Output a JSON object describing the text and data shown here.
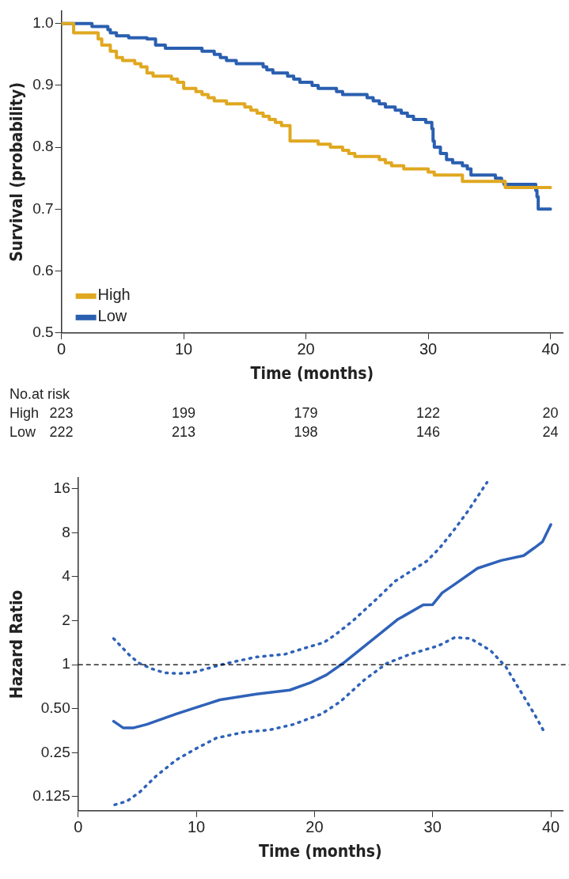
{
  "chart_data": [
    {
      "type": "step",
      "ylabel": "Survival (probability)",
      "xlabel": "Time (months)",
      "xlim": [
        0,
        41
      ],
      "xticks": [
        0,
        10,
        20,
        30,
        40
      ],
      "ylim": [
        0.5,
        1.02
      ],
      "yticks": [
        0.5,
        0.6,
        0.7,
        0.8,
        0.9,
        {
          "value": 1,
          "label": "1.0"
        }
      ],
      "grid": false,
      "legend": "bottom left",
      "series": [
        {
          "name": "High",
          "color": "#e0a820",
          "x": [
            0,
            1,
            3,
            3.3,
            4,
            4.5,
            5,
            6,
            6.5,
            7,
            7.5,
            9,
            9.5,
            10,
            11,
            11.5,
            12,
            12.5,
            13.5,
            15,
            15.5,
            16,
            16.5,
            17,
            17.5,
            18,
            18.7,
            21,
            22,
            23,
            23.5,
            24,
            26,
            26.5,
            27,
            28,
            30,
            30.5,
            32.8,
            36.3,
            40
          ],
          "values": [
            1,
            0.985,
            0.975,
            0.965,
            0.955,
            0.945,
            0.94,
            0.935,
            0.93,
            0.92,
            0.915,
            0.91,
            0.905,
            0.895,
            0.89,
            0.885,
            0.88,
            0.875,
            0.87,
            0.865,
            0.86,
            0.855,
            0.85,
            0.845,
            0.84,
            0.835,
            0.81,
            0.805,
            0.8,
            0.795,
            0.79,
            0.785,
            0.78,
            0.775,
            0.77,
            0.765,
            0.76,
            0.755,
            0.745,
            0.735,
            0.735
          ]
        },
        {
          "name": "Low",
          "color": "#2a5fb0",
          "x": [
            0,
            2.5,
            3.8,
            4,
            4.5,
            5.5,
            7,
            7.7,
            8.5,
            11.5,
            12.5,
            13,
            13.5,
            14.3,
            16.5,
            16.8,
            17.3,
            18.5,
            19,
            19.5,
            20.5,
            21,
            22.5,
            23,
            25,
            25.5,
            26,
            26.5,
            27.3,
            27.8,
            28.3,
            28.8,
            29.8,
            30.3,
            30.4,
            30.5,
            31,
            31.5,
            32,
            32.8,
            33.2,
            33.5,
            35.5,
            36,
            36.2,
            38.8,
            38.9,
            39,
            40
          ],
          "values": [
            1,
            0.995,
            0.99,
            0.985,
            0.98,
            0.977,
            0.975,
            0.965,
            0.96,
            0.955,
            0.95,
            0.945,
            0.94,
            0.935,
            0.93,
            0.925,
            0.92,
            0.915,
            0.91,
            0.905,
            0.9,
            0.895,
            0.89,
            0.885,
            0.88,
            0.875,
            0.87,
            0.865,
            0.86,
            0.855,
            0.85,
            0.845,
            0.84,
            0.83,
            0.81,
            0.8,
            0.79,
            0.78,
            0.775,
            0.77,
            0.765,
            0.755,
            0.75,
            0.745,
            0.74,
            0.73,
            0.72,
            0.7,
            0.7
          ]
        }
      ],
      "annotations": [
        "No.at risk",
        "High",
        "223",
        "199",
        "179",
        "122",
        "20",
        "Low",
        "222",
        "213",
        "198",
        "146",
        "24"
      ]
    },
    {
      "type": "line",
      "ylabel": "Hazard Ratio",
      "xlabel": "Time (months)",
      "log": "y",
      "xlim": [
        0,
        41
      ],
      "xticks": [
        0,
        10,
        20,
        30,
        40
      ],
      "ylim": [
        0.1,
        19
      ],
      "yticks": [
        0.125,
        0.25,
        {
          "value": 0.5,
          "label": "0.50"
        },
        1,
        2,
        4,
        8,
        16
      ],
      "grid": false,
      "legend": false,
      "ref_lines": [
        {
          "axis": "y",
          "value": 1,
          "color": "#000000",
          "line_style": "dashed"
        }
      ],
      "series": [
        {
          "color": "#2f62b8",
          "line_style": "solid",
          "x": [
            3,
            3.8,
            4.7,
            5.8,
            8.3,
            10,
            12,
            15.1,
            17.9,
            19.6,
            21,
            22.4,
            25.3,
            27,
            29.2,
            30,
            30.8,
            31.9,
            33.8,
            35.8,
            37.7,
            38.6,
            39.3,
            40
          ],
          "values": [
            0.41,
            0.37,
            0.37,
            0.39,
            0.46,
            0.51,
            0.575,
            0.63,
            0.67,
            0.75,
            0.85,
            1.02,
            1.57,
            2.03,
            2.57,
            2.58,
            3.1,
            3.57,
            4.57,
            5.17,
            5.58,
            6.3,
            6.96,
            9.1
          ]
        },
        {
          "color": "#2f62b8",
          "line_style": "dotted",
          "x": [
            3,
            4.4,
            5.2,
            6.2,
            7.3,
            8.5,
            9.6,
            10.7,
            11.9,
            13,
            15.1,
            17.5,
            19.6,
            20.8,
            21.6,
            23.2,
            25.3,
            26.8,
            29.5,
            30.6,
            31.9,
            33,
            34.6
          ],
          "values": [
            1.51,
            1.15,
            1.02,
            0.94,
            0.88,
            0.87,
            0.88,
            0.93,
            0.99,
            1.04,
            1.13,
            1.18,
            1.33,
            1.42,
            1.57,
            1.98,
            2.84,
            3.72,
            5.12,
            6.3,
            8.55,
            11.3,
            17.7
          ]
        },
        {
          "color": "#2f62b8",
          "line_style": "dotted",
          "x": [
            3.1,
            4.1,
            5.2,
            6.6,
            8.3,
            10,
            11.7,
            14,
            16.2,
            18.2,
            20.6,
            22.2,
            24.2,
            26.1,
            28.1,
            30.5,
            31.9,
            33.2,
            34.9,
            36.2,
            37.1,
            38.6,
            39.5
          ],
          "values": [
            0.11,
            0.116,
            0.134,
            0.173,
            0.223,
            0.267,
            0.315,
            0.345,
            0.358,
            0.39,
            0.46,
            0.56,
            0.785,
            1.02,
            1.18,
            1.35,
            1.54,
            1.51,
            1.25,
            0.965,
            0.73,
            0.46,
            0.34
          ]
        }
      ]
    }
  ]
}
